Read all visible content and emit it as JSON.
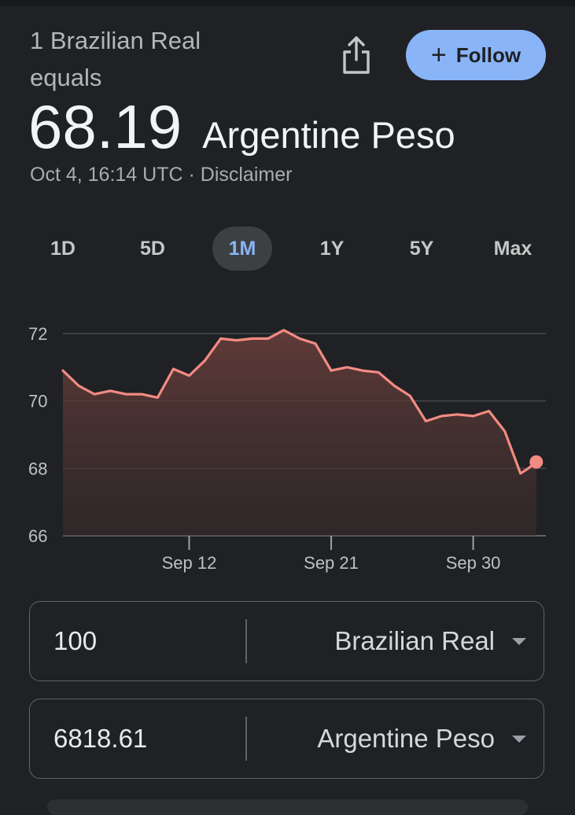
{
  "header": {
    "equals_label": "1 Brazilian Real equals",
    "rate_value": "68.19",
    "rate_currency": "Argentine Peso",
    "timestamp": "Oct 4, 16:14 UTC",
    "separator": "·",
    "disclaimer": "Disclaimer"
  },
  "actions": {
    "share_icon": "share-icon",
    "follow_label": "Follow",
    "follow_icon": "plus-icon"
  },
  "range_tabs": [
    {
      "label": "1D",
      "active": false
    },
    {
      "label": "5D",
      "active": false
    },
    {
      "label": "1M",
      "active": true
    },
    {
      "label": "1Y",
      "active": false
    },
    {
      "label": "5Y",
      "active": false
    },
    {
      "label": "Max",
      "active": false
    }
  ],
  "colors": {
    "accent": "#8ab4f8",
    "line": "#f28b82",
    "background": "#202124"
  },
  "chart_data": {
    "type": "area",
    "ylim": [
      66,
      72
    ],
    "y_ticks": [
      72,
      70,
      68,
      66
    ],
    "x_tick_labels": [
      {
        "label": "Sep 12",
        "day": 12
      },
      {
        "label": "Sep 21",
        "day": 21
      },
      {
        "label": "Sep 30",
        "day": 30
      }
    ],
    "series": [
      {
        "days": [
          4,
          5,
          6,
          7,
          8,
          9,
          10,
          11,
          12,
          13,
          14,
          15,
          16,
          17,
          18,
          19,
          20,
          21,
          22,
          23,
          24,
          25,
          26,
          27,
          28,
          29,
          30,
          31,
          32,
          33,
          33.5,
          34
        ],
        "values": [
          70.9,
          70.45,
          70.2,
          70.3,
          70.2,
          70.2,
          70.1,
          70.95,
          70.75,
          71.2,
          71.85,
          71.8,
          71.85,
          71.85,
          72.1,
          71.85,
          71.7,
          70.9,
          71.0,
          70.9,
          70.85,
          70.45,
          70.15,
          69.4,
          69.55,
          69.6,
          69.55,
          69.7,
          69.1,
          67.85,
          68.0,
          68.19
        ]
      }
    ],
    "grid": true
  },
  "converter": {
    "from": {
      "amount": "100",
      "currency": "Brazilian Real"
    },
    "to": {
      "amount": "6818.61",
      "currency": "Argentine Peso"
    }
  }
}
